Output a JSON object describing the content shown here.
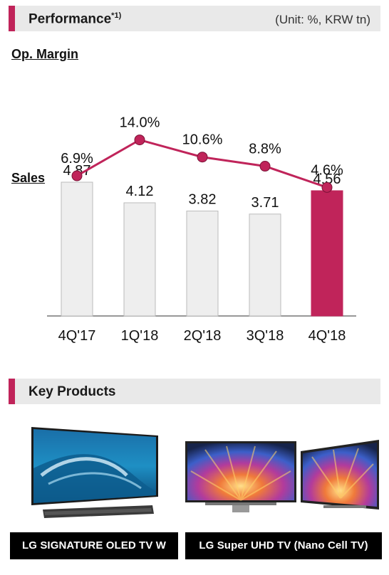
{
  "performance": {
    "title": "Performance",
    "title_sup": "*1)",
    "unit": "(Unit: %, KRW tn)"
  },
  "op_margin": {
    "label": "Op. Margin"
  },
  "sales": {
    "label": "Sales"
  },
  "chart_data": {
    "type": "bar",
    "categories": [
      "4Q'17",
      "1Q'18",
      "2Q'18",
      "3Q'18",
      "4Q'18"
    ],
    "series": [
      {
        "name": "Sales",
        "type": "bar",
        "values": [
          4.87,
          4.12,
          3.82,
          3.71,
          4.56
        ],
        "labels": [
          "4.87",
          "4.12",
          "3.82",
          "3.71",
          "4.56"
        ],
        "highlight_index": 4
      },
      {
        "name": "Op. Margin",
        "type": "line",
        "values": [
          6.9,
          14.0,
          10.6,
          8.8,
          4.6
        ],
        "labels": [
          "6.9%",
          "14.0%",
          "10.6%",
          "8.8%",
          "4.6%"
        ]
      }
    ],
    "colors": {
      "bar": "#eeeeee",
      "bar_border": "#bbbbbb",
      "highlight": "#c0245a",
      "line": "#c0245a"
    }
  },
  "key_products": {
    "title": "Key Products",
    "items": [
      {
        "label": "LG SIGNATURE OLED TV W"
      },
      {
        "label": "LG Super UHD TV (Nano Cell TV)"
      }
    ]
  }
}
